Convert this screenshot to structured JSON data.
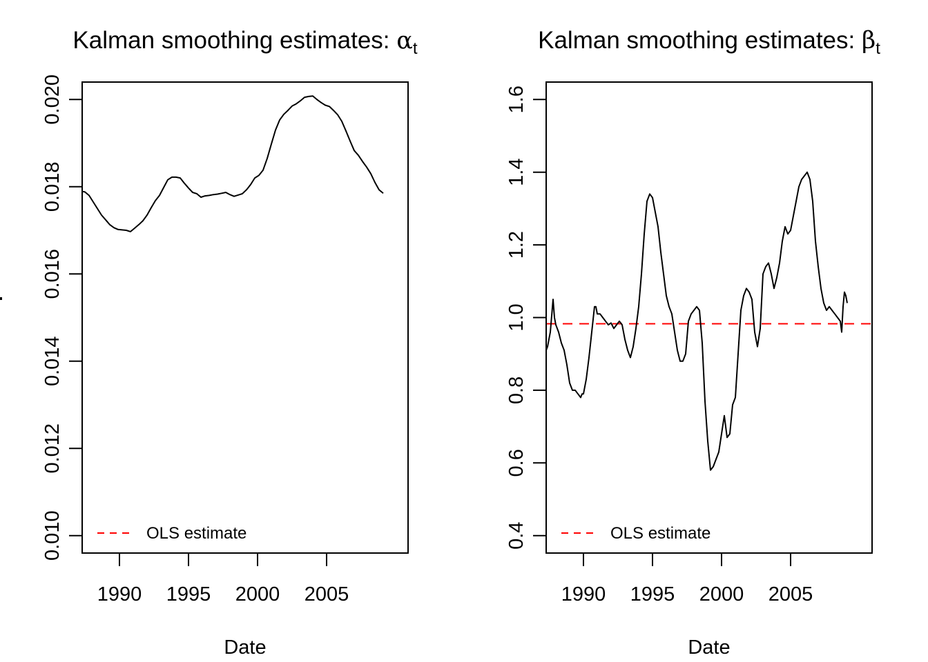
{
  "chart_data": [
    {
      "type": "line",
      "title": "Kalman smoothing estimates: ",
      "title_symbol": "α",
      "title_subscript": "t",
      "xlabel": "Date",
      "ylabel": "",
      "xlim": [
        1987.3,
        2010.9
      ],
      "ylim": [
        0.0096,
        0.0204
      ],
      "xticks": [
        1990,
        1995,
        2000,
        2005
      ],
      "xtick_labels": [
        "1990",
        "1995",
        "2000",
        "2005"
      ],
      "yticks": [
        0.01,
        0.012,
        0.014,
        0.016,
        0.018,
        0.02
      ],
      "ytick_labels": [
        "0.010",
        "0.012",
        "0.014",
        "0.016",
        "0.018",
        "0.020"
      ],
      "grid": false,
      "legend": {
        "position": "bottom-left",
        "entries": [
          {
            "label": "OLS estimate",
            "color": "#ff0000",
            "style": "dashed"
          }
        ]
      },
      "series": [
        {
          "name": "alpha_t",
          "color": "#000000",
          "x": [
            1987.2,
            1987.5,
            1987.8,
            1988.1,
            1988.4,
            1988.7,
            1989.0,
            1989.3,
            1989.6,
            1989.9,
            1990.2,
            1990.5,
            1990.8,
            1991.1,
            1991.4,
            1991.7,
            1992.0,
            1992.3,
            1992.6,
            1992.9,
            1993.2,
            1993.5,
            1993.8,
            1994.1,
            1994.4,
            1994.7,
            1995.0,
            1995.3,
            1995.6,
            1995.9,
            1996.2,
            1996.5,
            1996.8,
            1997.1,
            1997.4,
            1997.7,
            1998.0,
            1998.3,
            1998.6,
            1998.9,
            1999.2,
            1999.5,
            1999.8,
            2000.1,
            2000.4,
            2000.7,
            2001.0,
            2001.3,
            2001.6,
            2001.9,
            2002.2,
            2002.5,
            2002.8,
            2003.1,
            2003.4,
            2003.7,
            2004.0,
            2004.3,
            2004.6,
            2004.9,
            2005.2,
            2005.5,
            2005.8,
            2006.1,
            2006.4,
            2006.7,
            2007.0,
            2007.3,
            2007.6,
            2007.9,
            2008.2,
            2008.5,
            2008.8,
            2009.1
          ],
          "y": [
            0.0179,
            0.01788,
            0.0178,
            0.01765,
            0.0175,
            0.01735,
            0.01724,
            0.01713,
            0.01706,
            0.01702,
            0.01701,
            0.017,
            0.01697,
            0.01705,
            0.01713,
            0.01722,
            0.01735,
            0.01752,
            0.01768,
            0.0178,
            0.01798,
            0.01816,
            0.01822,
            0.01822,
            0.0182,
            0.01808,
            0.01797,
            0.01787,
            0.01784,
            0.01776,
            0.01779,
            0.0178,
            0.01782,
            0.01783,
            0.01785,
            0.01787,
            0.01782,
            0.01778,
            0.01781,
            0.01784,
            0.01793,
            0.01805,
            0.0182,
            0.01826,
            0.01838,
            0.01865,
            0.01898,
            0.0193,
            0.01953,
            0.01966,
            0.01975,
            0.01985,
            0.0199,
            0.01997,
            0.02005,
            0.02007,
            0.02008,
            0.02,
            0.01993,
            0.01987,
            0.01984,
            0.01975,
            0.01965,
            0.0195,
            0.01928,
            0.01905,
            0.01883,
            0.01872,
            0.01858,
            0.01845,
            0.0183,
            0.0181,
            0.01793,
            0.01785
          ]
        },
        {
          "name": "OLS estimate",
          "color": "#ff0000",
          "style": "dashed",
          "value": null
        }
      ]
    },
    {
      "type": "line",
      "title": "Kalman smoothing estimates: ",
      "title_symbol": "β",
      "title_subscript": "t",
      "xlabel": "Date",
      "ylabel": "",
      "xlim": [
        1987.3,
        2010.9
      ],
      "ylim": [
        0.352,
        1.648
      ],
      "xticks": [
        1990,
        1995,
        2000,
        2005
      ],
      "xtick_labels": [
        "1990",
        "1995",
        "2000",
        "2005"
      ],
      "yticks": [
        0.4,
        0.6,
        0.8,
        1.0,
        1.2,
        1.4,
        1.6
      ],
      "ytick_labels": [
        "0.4",
        "0.6",
        "0.8",
        "1.0",
        "1.2",
        "1.4",
        "1.6"
      ],
      "grid": false,
      "legend": {
        "position": "bottom-left",
        "entries": [
          {
            "label": "OLS estimate",
            "color": "#ff0000",
            "style": "dashed"
          }
        ]
      },
      "series": [
        {
          "name": "beta_t",
          "color": "#000000",
          "x": [
            1987.2,
            1987.4,
            1987.6,
            1987.8,
            1987.9,
            1988.0,
            1988.1,
            1988.2,
            1988.4,
            1988.6,
            1988.8,
            1989.0,
            1989.2,
            1989.4,
            1989.6,
            1989.8,
            1989.9,
            1990.0,
            1990.2,
            1990.4,
            1990.6,
            1990.8,
            1990.9,
            1991.0,
            1991.2,
            1991.4,
            1991.6,
            1991.8,
            1992.0,
            1992.2,
            1992.4,
            1992.6,
            1992.8,
            1993.0,
            1993.2,
            1993.4,
            1993.6,
            1993.8,
            1994.0,
            1994.2,
            1994.4,
            1994.6,
            1994.8,
            1995.0,
            1995.2,
            1995.4,
            1995.6,
            1995.8,
            1996.0,
            1996.2,
            1996.4,
            1996.6,
            1996.8,
            1997.0,
            1997.2,
            1997.4,
            1997.6,
            1997.8,
            1998.0,
            1998.2,
            1998.4,
            1998.6,
            1998.8,
            1999.0,
            1999.2,
            1999.4,
            1999.6,
            1999.8,
            2000.0,
            2000.2,
            2000.4,
            2000.6,
            2000.8,
            2001.0,
            2001.2,
            2001.4,
            2001.6,
            2001.8,
            2002.0,
            2002.2,
            2002.4,
            2002.6,
            2002.8,
            2003.0,
            2003.2,
            2003.4,
            2003.6,
            2003.8,
            2004.0,
            2004.2,
            2004.4,
            2004.6,
            2004.8,
            2005.0,
            2005.2,
            2005.4,
            2005.6,
            2005.8,
            2006.0,
            2006.2,
            2006.4,
            2006.6,
            2006.8,
            2007.0,
            2007.2,
            2007.4,
            2007.6,
            2007.8,
            2008.0,
            2008.2,
            2008.4,
            2008.6,
            2008.7,
            2008.8,
            2008.9,
            2009.0,
            2009.1
          ],
          "y": [
            0.9,
            0.92,
            0.96,
            1.05,
            1.0,
            0.98,
            0.97,
            0.96,
            0.93,
            0.91,
            0.87,
            0.82,
            0.8,
            0.8,
            0.79,
            0.78,
            0.79,
            0.79,
            0.83,
            0.89,
            0.96,
            1.03,
            1.03,
            1.01,
            1.01,
            1.0,
            0.99,
            0.98,
            0.985,
            0.97,
            0.98,
            0.99,
            0.98,
            0.94,
            0.91,
            0.89,
            0.92,
            0.97,
            1.03,
            1.12,
            1.23,
            1.32,
            1.34,
            1.33,
            1.29,
            1.25,
            1.18,
            1.12,
            1.06,
            1.03,
            1.01,
            0.96,
            0.91,
            0.88,
            0.88,
            0.9,
            0.99,
            1.01,
            1.02,
            1.03,
            1.02,
            0.93,
            0.77,
            0.66,
            0.58,
            0.59,
            0.61,
            0.63,
            0.68,
            0.73,
            0.67,
            0.68,
            0.76,
            0.78,
            0.9,
            1.02,
            1.06,
            1.08,
            1.07,
            1.05,
            0.96,
            0.92,
            0.97,
            1.12,
            1.14,
            1.15,
            1.12,
            1.08,
            1.11,
            1.15,
            1.21,
            1.25,
            1.23,
            1.24,
            1.28,
            1.32,
            1.36,
            1.38,
            1.39,
            1.4,
            1.38,
            1.32,
            1.21,
            1.14,
            1.08,
            1.04,
            1.02,
            1.03,
            1.02,
            1.01,
            1.0,
            0.99,
            0.96,
            1.03,
            1.07,
            1.06,
            1.04
          ],
          "note": "OLS estimate ≈ 0.983"
        },
        {
          "name": "OLS estimate",
          "color": "#ff0000",
          "style": "dashed",
          "value": 0.983
        }
      ]
    }
  ]
}
